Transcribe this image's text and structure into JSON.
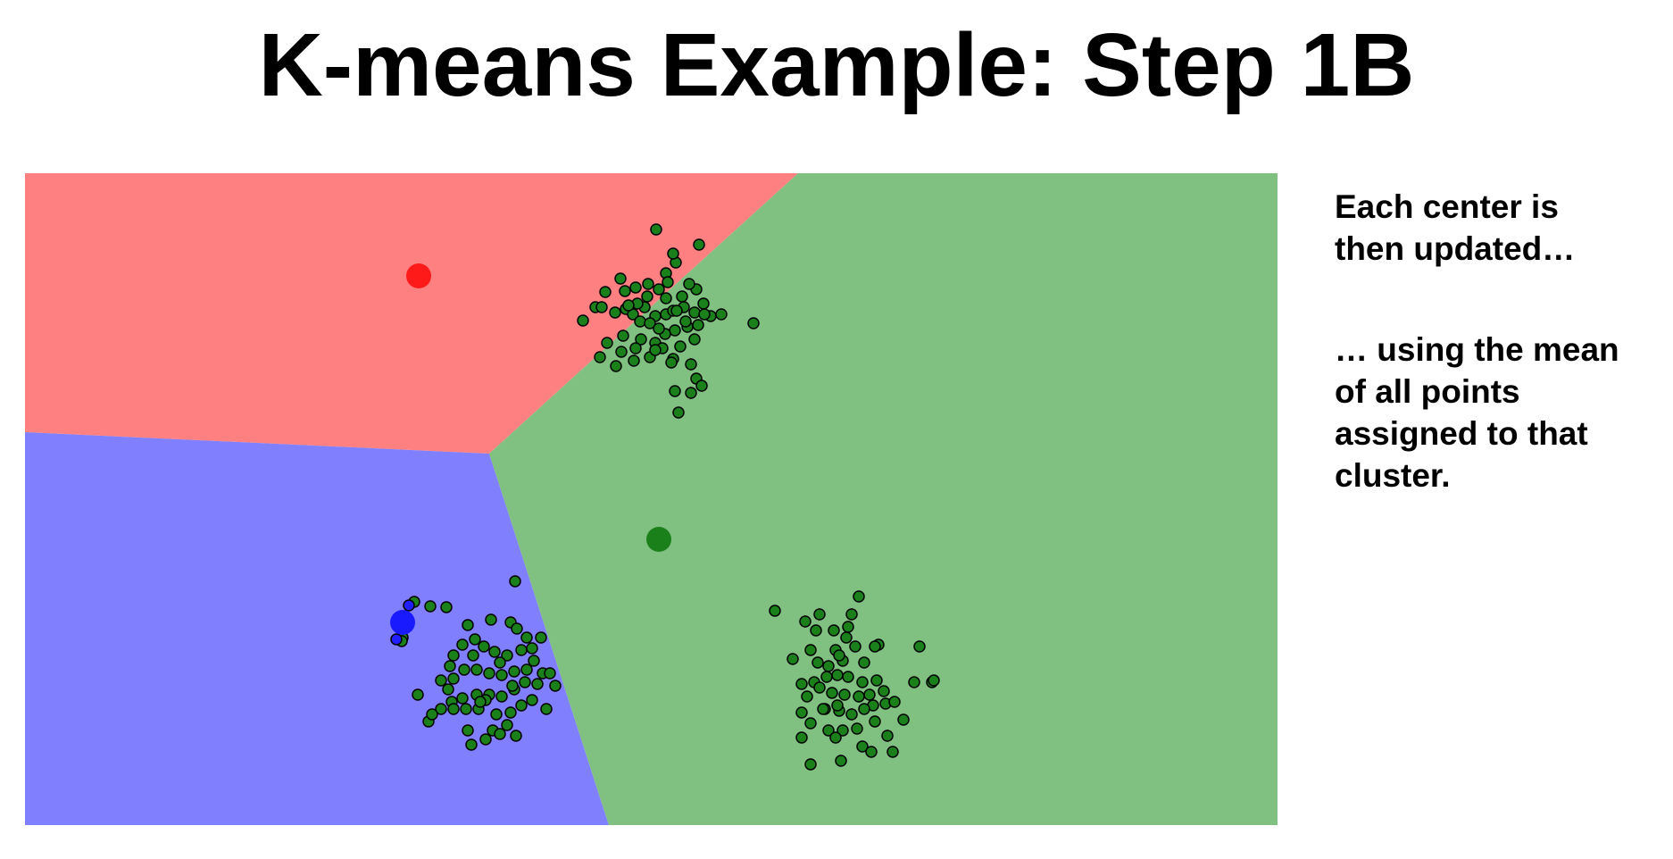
{
  "slide": {
    "title": "K-means Example: Step 1B",
    "paragraphs": [
      "Each center is\nthen updated…",
      "… using the mean\nof all points\nassigned to that\ncluster."
    ]
  },
  "colors": {
    "region_red": "#ff8080",
    "region_blue": "#8080ff",
    "region_green": "#80c080",
    "center_red": "#ff1a1a",
    "center_blue": "#1a1aff",
    "center_green": "#1a801a",
    "point_green": "#1a801a",
    "point_blue": "#2020ff",
    "point_stroke": "#000000"
  },
  "chart_data": {
    "type": "scatter",
    "xlim": [
      0,
      1403
    ],
    "ylim": [
      0,
      730
    ],
    "regions": [
      {
        "name": "red",
        "polygon": [
          [
            0,
            0
          ],
          [
            866,
            0
          ],
          [
            520,
            314
          ],
          [
            0,
            290
          ]
        ]
      },
      {
        "name": "blue",
        "polygon": [
          [
            0,
            290
          ],
          [
            520,
            314
          ],
          [
            654,
            730
          ],
          [
            0,
            730
          ]
        ]
      },
      {
        "name": "green",
        "polygon": [
          [
            866,
            0
          ],
          [
            1403,
            0
          ],
          [
            1403,
            730
          ],
          [
            654,
            730
          ],
          [
            520,
            314
          ]
        ]
      }
    ],
    "centers": [
      {
        "name": "red",
        "x": 441,
        "y": 115
      },
      {
        "name": "blue",
        "x": 423,
        "y": 503
      },
      {
        "name": "green",
        "x": 710,
        "y": 410
      }
    ],
    "clusters": [
      {
        "center_x": 710,
        "center_y": 160,
        "points": [
          [
            707,
            63
          ],
          [
            729,
            100
          ],
          [
            755,
            80
          ],
          [
            726,
            90
          ],
          [
            718,
            112
          ],
          [
            710,
            130
          ],
          [
            698,
            124
          ],
          [
            684,
            128
          ],
          [
            672,
            132
          ],
          [
            667,
            118
          ],
          [
            650,
            133
          ],
          [
            639,
            150
          ],
          [
            625,
            165
          ],
          [
            646,
            150
          ],
          [
            661,
            156
          ],
          [
            673,
            152
          ],
          [
            681,
            158
          ],
          [
            694,
            150
          ],
          [
            706,
            160
          ],
          [
            718,
            158
          ],
          [
            726,
            154
          ],
          [
            738,
            150
          ],
          [
            750,
            156
          ],
          [
            760,
            146
          ],
          [
            768,
            160
          ],
          [
            780,
            158
          ],
          [
            754,
            170
          ],
          [
            742,
            172
          ],
          [
            728,
            176
          ],
          [
            717,
            180
          ],
          [
            706,
            190
          ],
          [
            690,
            186
          ],
          [
            670,
            182
          ],
          [
            652,
            190
          ],
          [
            644,
            206
          ],
          [
            668,
            200
          ],
          [
            682,
            210
          ],
          [
            700,
            206
          ],
          [
            714,
            196
          ],
          [
            734,
            194
          ],
          [
            750,
            186
          ],
          [
            726,
            208
          ],
          [
            746,
            214
          ],
          [
            662,
            216
          ],
          [
            724,
            212
          ],
          [
            706,
            198
          ],
          [
            684,
            196
          ],
          [
            736,
            138
          ],
          [
            752,
            130
          ],
          [
            718,
            140
          ],
          [
            697,
            138
          ],
          [
            689,
            166
          ],
          [
            700,
            168
          ],
          [
            740,
            166
          ],
          [
            728,
            244
          ],
          [
            752,
            230
          ],
          [
            758,
            238
          ],
          [
            746,
            246
          ],
          [
            732,
            268
          ],
          [
            816,
            168
          ],
          [
            761,
            158
          ],
          [
            686,
            146
          ],
          [
            720,
            122
          ],
          [
            744,
            124
          ],
          [
            676,
            148
          ],
          [
            730,
            154
          ],
          [
            710,
            174
          ]
        ]
      },
      {
        "center_x": 540,
        "center_y": 580,
        "points": [
          [
            549,
            457
          ],
          [
            454,
            485
          ],
          [
            472,
            486
          ],
          [
            423,
            520
          ],
          [
            496,
            506
          ],
          [
            522,
            500
          ],
          [
            544,
            503
          ],
          [
            551,
            510
          ],
          [
            562,
            520
          ],
          [
            578,
            520
          ],
          [
            568,
            532
          ],
          [
            556,
            534
          ],
          [
            540,
            540
          ],
          [
            526,
            536
          ],
          [
            514,
            530
          ],
          [
            504,
            522
          ],
          [
            490,
            528
          ],
          [
            480,
            540
          ],
          [
            476,
            552
          ],
          [
            466,
            568
          ],
          [
            480,
            566
          ],
          [
            492,
            556
          ],
          [
            506,
            556
          ],
          [
            520,
            560
          ],
          [
            534,
            562
          ],
          [
            548,
            558
          ],
          [
            562,
            556
          ],
          [
            570,
            546
          ],
          [
            580,
            560
          ],
          [
            594,
            574
          ],
          [
            588,
            560
          ],
          [
            574,
            572
          ],
          [
            560,
            570
          ],
          [
            548,
            578
          ],
          [
            534,
            586
          ],
          [
            520,
            584
          ],
          [
            506,
            584
          ],
          [
            490,
            588
          ],
          [
            478,
            592
          ],
          [
            466,
            600
          ],
          [
            480,
            600
          ],
          [
            494,
            600
          ],
          [
            508,
            600
          ],
          [
            516,
            590
          ],
          [
            528,
            606
          ],
          [
            544,
            604
          ],
          [
            556,
            596
          ],
          [
            568,
            590
          ],
          [
            540,
            618
          ],
          [
            524,
            624
          ],
          [
            532,
            628
          ],
          [
            550,
            630
          ],
          [
            496,
            624
          ],
          [
            500,
            640
          ],
          [
            440,
            584
          ],
          [
            474,
            578
          ],
          [
            502,
            540
          ],
          [
            532,
            548
          ],
          [
            546,
            574
          ],
          [
            452,
            614
          ],
          [
            436,
            480
          ],
          [
            422,
            524
          ],
          [
            456,
            606
          ],
          [
            510,
            592
          ],
          [
            584,
            600
          ],
          [
            516,
            634
          ]
        ]
      },
      {
        "center_x": 910,
        "center_y": 570,
        "points": [
          [
            934,
            474
          ],
          [
            840,
            490
          ],
          [
            890,
            494
          ],
          [
            926,
            494
          ],
          [
            874,
            502
          ],
          [
            886,
            512
          ],
          [
            906,
            512
          ],
          [
            920,
            520
          ],
          [
            956,
            528
          ],
          [
            930,
            530
          ],
          [
            908,
            534
          ],
          [
            880,
            534
          ],
          [
            860,
            544
          ],
          [
            888,
            548
          ],
          [
            900,
            552
          ],
          [
            916,
            546
          ],
          [
            940,
            548
          ],
          [
            910,
            562
          ],
          [
            922,
            564
          ],
          [
            938,
            570
          ],
          [
            954,
            568
          ],
          [
            898,
            564
          ],
          [
            884,
            570
          ],
          [
            870,
            572
          ],
          [
            890,
            576
          ],
          [
            904,
            582
          ],
          [
            918,
            584
          ],
          [
            934,
            586
          ],
          [
            946,
            584
          ],
          [
            962,
            580
          ],
          [
            876,
            586
          ],
          [
            870,
            604
          ],
          [
            896,
            600
          ],
          [
            912,
            602
          ],
          [
            926,
            606
          ],
          [
            950,
            596
          ],
          [
            964,
            594
          ],
          [
            952,
            614
          ],
          [
            932,
            622
          ],
          [
            916,
            624
          ],
          [
            900,
            624
          ],
          [
            880,
            616
          ],
          [
            870,
            632
          ],
          [
            908,
            632
          ],
          [
            938,
            642
          ],
          [
            974,
            592
          ],
          [
            984,
            612
          ],
          [
            966,
            630
          ],
          [
            880,
            662
          ],
          [
            914,
            658
          ],
          [
            948,
            648
          ],
          [
            972,
            648
          ],
          [
            996,
            570
          ],
          [
            1016,
            570
          ],
          [
            1002,
            530
          ],
          [
            1018,
            568
          ],
          [
            952,
            530
          ],
          [
            922,
            508
          ],
          [
            894,
            600
          ],
          [
            940,
            600
          ],
          [
            912,
            540
          ],
          [
            910,
            596
          ]
        ]
      }
    ],
    "outlier_points_blue": [
      [
        430,
        484
      ],
      [
        416,
        522
      ]
    ]
  }
}
